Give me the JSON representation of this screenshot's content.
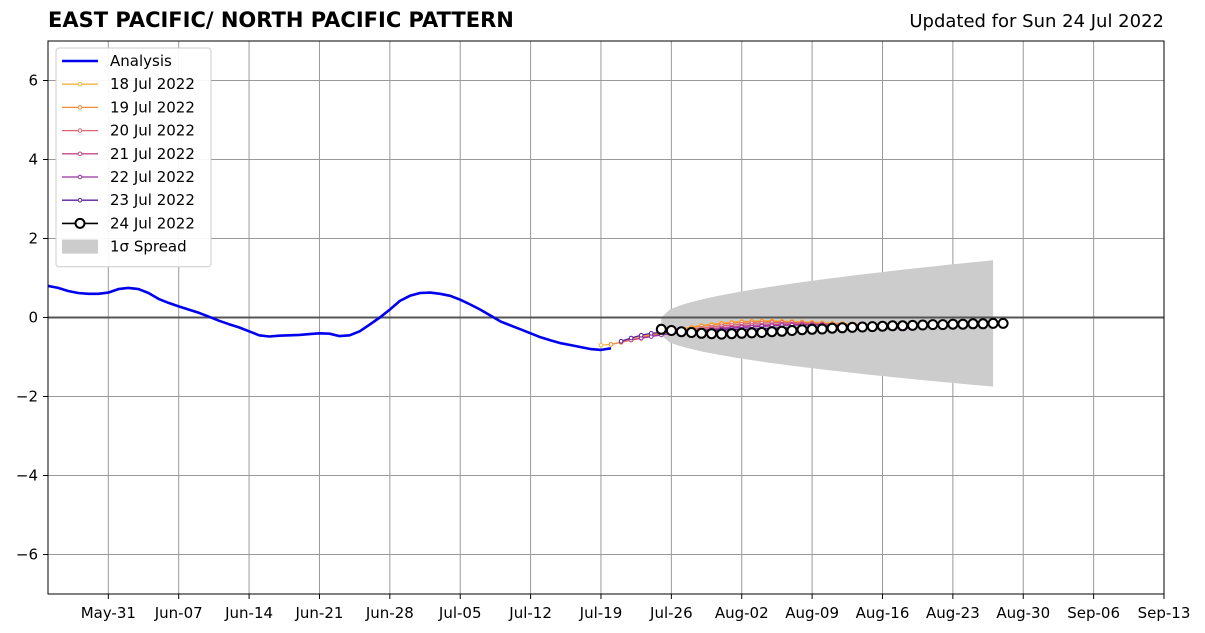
{
  "header": {
    "title": "EAST PACIFIC/ NORTH PACIFIC PATTERN",
    "updated": "Updated for Sun 24 Jul 2022"
  },
  "chart_data": {
    "type": "line",
    "title": "EAST PACIFIC/ NORTH PACIFIC PATTERN",
    "subtitle": "Updated for Sun 24 Jul 2022",
    "xlabel": "",
    "ylabel": "",
    "x_axis": {
      "type": "date",
      "range": [
        "2022-05-25",
        "2022-09-13"
      ],
      "ticks": [
        {
          "date": "2022-05-31",
          "label": "May-31"
        },
        {
          "date": "2022-06-07",
          "label": "Jun-07"
        },
        {
          "date": "2022-06-14",
          "label": "Jun-14"
        },
        {
          "date": "2022-06-21",
          "label": "Jun-21"
        },
        {
          "date": "2022-06-28",
          "label": "Jun-28"
        },
        {
          "date": "2022-07-05",
          "label": "Jul-05"
        },
        {
          "date": "2022-07-12",
          "label": "Jul-12"
        },
        {
          "date": "2022-07-19",
          "label": "Jul-19"
        },
        {
          "date": "2022-07-26",
          "label": "Jul-26"
        },
        {
          "date": "2022-08-02",
          "label": "Aug-02"
        },
        {
          "date": "2022-08-09",
          "label": "Aug-09"
        },
        {
          "date": "2022-08-16",
          "label": "Aug-16"
        },
        {
          "date": "2022-08-23",
          "label": "Aug-23"
        },
        {
          "date": "2022-08-30",
          "label": "Aug-30"
        },
        {
          "date": "2022-09-06",
          "label": "Sep-06"
        },
        {
          "date": "2022-09-13",
          "label": "Sep-13"
        }
      ]
    },
    "y_axis": {
      "ylim": [
        -7,
        7
      ],
      "ticks": [
        {
          "value": 6,
          "label": "6"
        },
        {
          "value": 4,
          "label": "4"
        },
        {
          "value": 2,
          "label": "2"
        },
        {
          "value": 0,
          "label": "0"
        },
        {
          "value": -2,
          "label": "−2"
        },
        {
          "value": -4,
          "label": "−4"
        },
        {
          "value": -6,
          "label": "−6"
        }
      ]
    },
    "grid": true,
    "legend_position": "top-left",
    "analysis": {
      "name": "Analysis",
      "color": "#0000ee",
      "x": [
        "2022-05-25",
        "2022-05-26",
        "2022-05-27",
        "2022-05-28",
        "2022-05-29",
        "2022-05-30",
        "2022-05-31",
        "2022-06-01",
        "2022-06-02",
        "2022-06-03",
        "2022-06-04",
        "2022-06-05",
        "2022-06-06",
        "2022-06-07",
        "2022-06-08",
        "2022-06-09",
        "2022-06-10",
        "2022-06-11",
        "2022-06-12",
        "2022-06-13",
        "2022-06-14",
        "2022-06-15",
        "2022-06-16",
        "2022-06-17",
        "2022-06-18",
        "2022-06-19",
        "2022-06-20",
        "2022-06-21",
        "2022-06-22",
        "2022-06-23",
        "2022-06-24",
        "2022-06-25",
        "2022-06-26",
        "2022-06-27",
        "2022-06-28",
        "2022-06-29",
        "2022-06-30",
        "2022-07-01",
        "2022-07-02",
        "2022-07-03",
        "2022-07-04",
        "2022-07-05",
        "2022-07-06",
        "2022-07-07",
        "2022-07-08",
        "2022-07-09",
        "2022-07-10",
        "2022-07-11",
        "2022-07-12",
        "2022-07-13",
        "2022-07-14",
        "2022-07-15",
        "2022-07-16",
        "2022-07-17",
        "2022-07-18",
        "2022-07-19",
        "2022-07-20"
      ],
      "y": [
        0.8,
        0.75,
        0.67,
        0.62,
        0.6,
        0.6,
        0.63,
        0.72,
        0.75,
        0.72,
        0.62,
        0.47,
        0.37,
        0.28,
        0.2,
        0.12,
        0.02,
        -0.08,
        -0.17,
        -0.25,
        -0.35,
        -0.45,
        -0.48,
        -0.46,
        -0.45,
        -0.44,
        -0.42,
        -0.4,
        -0.41,
        -0.47,
        -0.45,
        -0.35,
        -0.18,
        0.0,
        0.2,
        0.42,
        0.55,
        0.62,
        0.63,
        0.6,
        0.55,
        0.45,
        0.33,
        0.2,
        0.05,
        -0.1,
        -0.2,
        -0.3,
        -0.4,
        -0.5,
        -0.58,
        -0.65,
        -0.7,
        -0.75,
        -0.8,
        -0.82,
        -0.78
      ]
    },
    "forecasts": [
      {
        "name": "18 Jul 2022",
        "color": "#f5b342",
        "start": "2022-07-19",
        "y": [
          -0.7,
          -0.68,
          -0.62,
          -0.55,
          -0.48,
          -0.42,
          -0.38,
          -0.33,
          -0.28,
          -0.24,
          -0.2,
          -0.17,
          -0.14,
          -0.12,
          -0.1,
          -0.09,
          -0.08,
          -0.08,
          -0.09,
          -0.1,
          -0.11,
          -0.12,
          -0.13,
          -0.14,
          -0.15,
          -0.16,
          -0.17,
          -0.18
        ]
      },
      {
        "name": "19 Jul 2022",
        "color": "#f08c3c",
        "start": "2022-07-20",
        "y": [
          -0.68,
          -0.63,
          -0.57,
          -0.5,
          -0.45,
          -0.4,
          -0.35,
          -0.3,
          -0.26,
          -0.22,
          -0.19,
          -0.16,
          -0.14,
          -0.12,
          -0.11,
          -0.1,
          -0.1,
          -0.11,
          -0.12,
          -0.13,
          -0.14,
          -0.15,
          -0.16,
          -0.17,
          -0.18,
          -0.19,
          -0.2,
          -0.21
        ]
      },
      {
        "name": "20 Jul 2022",
        "color": "#e0646e",
        "start": "2022-07-21",
        "y": [
          -0.62,
          -0.57,
          -0.52,
          -0.47,
          -0.42,
          -0.38,
          -0.34,
          -0.3,
          -0.27,
          -0.24,
          -0.21,
          -0.19,
          -0.17,
          -0.15,
          -0.14,
          -0.13,
          -0.13,
          -0.13,
          -0.14,
          -0.15,
          -0.16,
          -0.17,
          -0.18,
          -0.19,
          -0.2,
          -0.21,
          -0.22,
          -0.23
        ]
      },
      {
        "name": "21 Jul 2022",
        "color": "#c8468c",
        "start": "2022-07-22",
        "y": [
          -0.57,
          -0.53,
          -0.48,
          -0.44,
          -0.4,
          -0.37,
          -0.34,
          -0.31,
          -0.28,
          -0.26,
          -0.24,
          -0.22,
          -0.2,
          -0.19,
          -0.18,
          -0.17,
          -0.17,
          -0.17,
          -0.17,
          -0.18,
          -0.19,
          -0.2,
          -0.21,
          -0.22,
          -0.23,
          -0.24,
          -0.25,
          -0.26
        ]
      },
      {
        "name": "22 Jul 2022",
        "color": "#9632a0",
        "start": "2022-07-23",
        "y": [
          -0.52,
          -0.48,
          -0.44,
          -0.41,
          -0.38,
          -0.35,
          -0.33,
          -0.31,
          -0.29,
          -0.27,
          -0.25,
          -0.24,
          -0.22,
          -0.21,
          -0.2,
          -0.19,
          -0.19,
          -0.19,
          -0.19,
          -0.2,
          -0.21,
          -0.22,
          -0.23,
          -0.24,
          -0.25,
          -0.26,
          -0.27,
          -0.28
        ]
      },
      {
        "name": "23 Jul 2022",
        "color": "#5a1ea0",
        "start": "2022-07-21",
        "y": [
          -0.6,
          -0.52,
          -0.45,
          -0.4,
          -0.38,
          -0.37,
          -0.36,
          -0.35,
          -0.34,
          -0.33,
          -0.32,
          -0.31,
          -0.3,
          -0.29,
          -0.28,
          -0.27,
          -0.26,
          -0.26,
          -0.26,
          -0.26,
          -0.26,
          -0.26,
          -0.27,
          -0.27,
          -0.27,
          -0.28,
          -0.28,
          -0.28
        ]
      },
      {
        "name": "24 Jul 2022",
        "color": "#000000",
        "start": "2022-07-25",
        "y": [
          -0.3,
          -0.33,
          -0.36,
          -0.38,
          -0.4,
          -0.41,
          -0.42,
          -0.41,
          -0.4,
          -0.39,
          -0.38,
          -0.36,
          -0.35,
          -0.33,
          -0.31,
          -0.3,
          -0.29,
          -0.27,
          -0.26,
          -0.25,
          -0.24,
          -0.23,
          -0.22,
          -0.21,
          -0.21,
          -0.2,
          -0.19,
          -0.18,
          -0.18,
          -0.17,
          -0.17,
          -0.16,
          -0.16,
          -0.15,
          -0.15
        ]
      }
    ],
    "spread": {
      "name": "1σ Spread",
      "color": "#cccccc",
      "start": "2022-07-25",
      "end": "2022-08-27",
      "upper_start": 0.0,
      "upper_end": 1.45,
      "lower_start": -0.45,
      "lower_end": -1.75
    },
    "legend": [
      {
        "label": "Analysis",
        "kind": "thick-line",
        "color": "#0000ee"
      },
      {
        "label": "18 Jul 2022",
        "kind": "dot-line",
        "color": "#f5b342"
      },
      {
        "label": "19 Jul 2022",
        "kind": "dot-line",
        "color": "#f08c3c"
      },
      {
        "label": "20 Jul 2022",
        "kind": "dot-line",
        "color": "#e0646e"
      },
      {
        "label": "21 Jul 2022",
        "kind": "dot-line",
        "color": "#c8468c"
      },
      {
        "label": "22 Jul 2022",
        "kind": "dot-line",
        "color": "#9632a0"
      },
      {
        "label": "23 Jul 2022",
        "kind": "dot-line",
        "color": "#5a1ea0"
      },
      {
        "label": "24 Jul 2022",
        "kind": "circle-line",
        "color": "#000000"
      },
      {
        "label": "1σ Spread",
        "kind": "patch",
        "color": "#cccccc"
      }
    ]
  }
}
